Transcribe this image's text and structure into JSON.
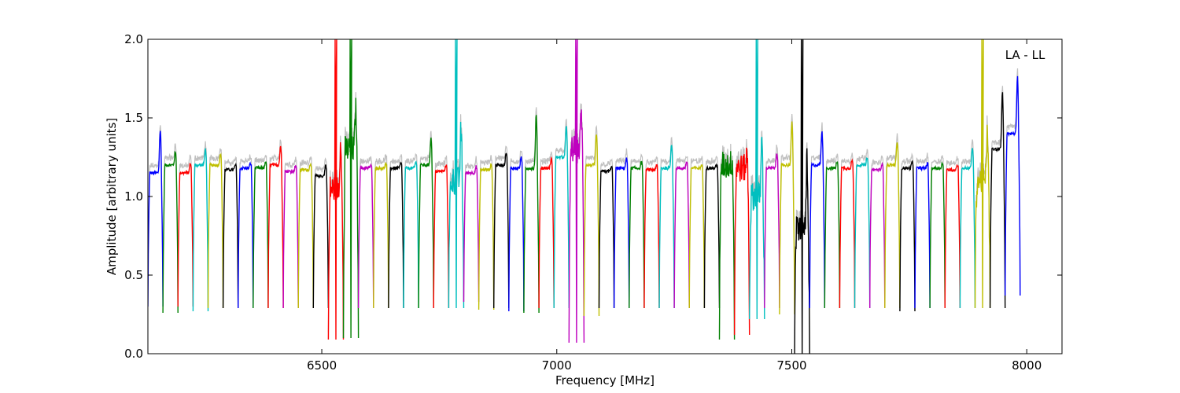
{
  "chart_data": {
    "type": "line",
    "xlabel": "Frequency [MHz]",
    "ylabel": "Amplitude [arbitrary units]",
    "annotation": "LA - LL",
    "xlim": [
      6130,
      8075
    ],
    "ylim": [
      0.0,
      2.0
    ],
    "xticks": [
      6500,
      7000,
      7500,
      8000
    ],
    "xtick_labels": [
      "6500",
      "7000",
      "7500",
      "8000"
    ],
    "yticks": [
      0.0,
      0.5,
      1.0,
      1.5,
      2.0
    ],
    "ytick_labels": [
      "0.0",
      "0.5",
      "1.0",
      "1.5",
      "2.0"
    ],
    "grid": false,
    "legend": "none",
    "background_series_color": "#c0c0c0",
    "series_colors": [
      "#0000ff",
      "#008000",
      "#ff0000",
      "#00bfbf",
      "#bfbf00",
      "#000000",
      "#bf00bf"
    ],
    "channel_width_mhz": 32,
    "channels": [
      {
        "start": 6130,
        "level": 1.15,
        "peak": 1.42,
        "min": 0.3,
        "color": "#0000ff"
      },
      {
        "start": 6162,
        "level": 1.2,
        "peak": 1.28,
        "min": 0.26,
        "color": "#008000"
      },
      {
        "start": 6194,
        "level": 1.15,
        "peak": 1.21,
        "min": 0.3,
        "color": "#ff0000"
      },
      {
        "start": 6226,
        "level": 1.2,
        "peak": 1.3,
        "min": 0.27,
        "color": "#00bfbf"
      },
      {
        "start": 6258,
        "level": 1.2,
        "peak": 1.27,
        "min": 0.29,
        "color": "#bfbf00"
      },
      {
        "start": 6290,
        "level": 1.17,
        "peak": 1.2,
        "min": 0.29,
        "color": "#000000"
      },
      {
        "start": 6322,
        "level": 1.18,
        "peak": 1.21,
        "min": 0.29,
        "color": "#0000ff"
      },
      {
        "start": 6354,
        "level": 1.18,
        "peak": 1.22,
        "min": 0.29,
        "color": "#008000"
      },
      {
        "start": 6386,
        "level": 1.2,
        "peak": 1.32,
        "min": 0.29,
        "color": "#ff0000"
      },
      {
        "start": 6418,
        "level": 1.16,
        "peak": 1.2,
        "min": 0.29,
        "color": "#bf00bf"
      },
      {
        "start": 6450,
        "level": 1.17,
        "peak": 1.21,
        "min": 0.29,
        "color": "#bfbf00"
      },
      {
        "start": 6482,
        "level": 1.13,
        "peak": 1.2,
        "min": 0.29,
        "color": "#000000"
      },
      {
        "start": 6514,
        "level": 1.05,
        "peak": 2.0,
        "min": 0.09,
        "color": "#ff0000"
      },
      {
        "start": 6546,
        "level": 1.3,
        "peak": 2.0,
        "min": 0.1,
        "color": "#008000"
      },
      {
        "start": 6578,
        "level": 1.18,
        "peak": 1.2,
        "min": 0.29,
        "color": "#bf00bf"
      },
      {
        "start": 6610,
        "level": 1.18,
        "peak": 1.21,
        "min": 0.29,
        "color": "#bfbf00"
      },
      {
        "start": 6642,
        "level": 1.18,
        "peak": 1.21,
        "min": 0.29,
        "color": "#000000"
      },
      {
        "start": 6674,
        "level": 1.18,
        "peak": 1.22,
        "min": 0.29,
        "color": "#00bfbf"
      },
      {
        "start": 6706,
        "level": 1.2,
        "peak": 1.37,
        "min": 0.29,
        "color": "#008000"
      },
      {
        "start": 6738,
        "level": 1.16,
        "peak": 1.2,
        "min": 0.29,
        "color": "#ff0000"
      },
      {
        "start": 6770,
        "level": 1.1,
        "peak": 2.0,
        "min": 0.29,
        "color": "#00bfbf"
      },
      {
        "start": 6802,
        "level": 1.15,
        "peak": 1.19,
        "min": 0.33,
        "color": "#bf00bf"
      },
      {
        "start": 6834,
        "level": 1.17,
        "peak": 1.2,
        "min": 0.28,
        "color": "#bfbf00"
      },
      {
        "start": 6866,
        "level": 1.2,
        "peak": 1.28,
        "min": 0.29,
        "color": "#000000"
      },
      {
        "start": 6898,
        "level": 1.18,
        "peak": 1.25,
        "min": 0.27,
        "color": "#0000ff"
      },
      {
        "start": 6930,
        "level": 1.18,
        "peak": 1.52,
        "min": 0.26,
        "color": "#008000"
      },
      {
        "start": 6962,
        "level": 1.18,
        "peak": 1.24,
        "min": 0.29,
        "color": "#ff0000"
      },
      {
        "start": 6994,
        "level": 1.25,
        "peak": 1.45,
        "min": 0.29,
        "color": "#00bfbf"
      },
      {
        "start": 7026,
        "level": 1.3,
        "peak": 2.0,
        "min": 0.07,
        "color": "#bf00bf"
      },
      {
        "start": 7058,
        "level": 1.2,
        "peak": 1.39,
        "min": 0.24,
        "color": "#bfbf00"
      },
      {
        "start": 7090,
        "level": 1.16,
        "peak": 1.19,
        "min": 0.29,
        "color": "#000000"
      },
      {
        "start": 7122,
        "level": 1.18,
        "peak": 1.24,
        "min": 0.29,
        "color": "#0000ff"
      },
      {
        "start": 7154,
        "level": 1.18,
        "peak": 1.22,
        "min": 0.29,
        "color": "#008000"
      },
      {
        "start": 7186,
        "level": 1.17,
        "peak": 1.2,
        "min": 0.29,
        "color": "#ff0000"
      },
      {
        "start": 7218,
        "level": 1.18,
        "peak": 1.33,
        "min": 0.29,
        "color": "#00bfbf"
      },
      {
        "start": 7250,
        "level": 1.18,
        "peak": 1.22,
        "min": 0.29,
        "color": "#bf00bf"
      },
      {
        "start": 7282,
        "level": 1.18,
        "peak": 1.2,
        "min": 0.29,
        "color": "#bfbf00"
      },
      {
        "start": 7314,
        "level": 1.18,
        "peak": 1.2,
        "min": 0.29,
        "color": "#000000"
      },
      {
        "start": 7346,
        "level": 1.2,
        "peak": 1.22,
        "min": 0.09,
        "color": "#008000"
      },
      {
        "start": 7378,
        "level": 1.18,
        "peak": 1.25,
        "min": 0.12,
        "color": "#ff0000"
      },
      {
        "start": 7410,
        "level": 1.0,
        "peak": 2.0,
        "min": 0.22,
        "color": "#00bfbf"
      },
      {
        "start": 7442,
        "level": 1.18,
        "peak": 1.27,
        "min": 0.29,
        "color": "#bf00bf"
      },
      {
        "start": 7474,
        "level": 1.2,
        "peak": 1.47,
        "min": 0.25,
        "color": "#bfbf00"
      },
      {
        "start": 7506,
        "level": 0.8,
        "peak": 2.0,
        "min": 0.0,
        "color": "#000000"
      },
      {
        "start": 7538,
        "level": 1.2,
        "peak": 1.41,
        "min": 0.29,
        "color": "#0000ff"
      },
      {
        "start": 7570,
        "level": 1.18,
        "peak": 1.22,
        "min": 0.29,
        "color": "#008000"
      },
      {
        "start": 7602,
        "level": 1.18,
        "peak": 1.23,
        "min": 0.29,
        "color": "#ff0000"
      },
      {
        "start": 7634,
        "level": 1.2,
        "peak": 1.24,
        "min": 0.29,
        "color": "#00bfbf"
      },
      {
        "start": 7666,
        "level": 1.17,
        "peak": 1.2,
        "min": 0.29,
        "color": "#bf00bf"
      },
      {
        "start": 7698,
        "level": 1.2,
        "peak": 1.35,
        "min": 0.29,
        "color": "#bfbf00"
      },
      {
        "start": 7730,
        "level": 1.18,
        "peak": 1.22,
        "min": 0.27,
        "color": "#000000"
      },
      {
        "start": 7762,
        "level": 1.18,
        "peak": 1.21,
        "min": 0.29,
        "color": "#0000ff"
      },
      {
        "start": 7794,
        "level": 1.18,
        "peak": 1.21,
        "min": 0.29,
        "color": "#008000"
      },
      {
        "start": 7826,
        "level": 1.17,
        "peak": 1.2,
        "min": 0.29,
        "color": "#ff0000"
      },
      {
        "start": 7858,
        "level": 1.18,
        "peak": 1.31,
        "min": 0.29,
        "color": "#00bfbf"
      },
      {
        "start": 7890,
        "level": 1.1,
        "peak": 2.0,
        "min": 0.29,
        "color": "#bfbf00"
      },
      {
        "start": 7922,
        "level": 1.3,
        "peak": 1.66,
        "min": 0.29,
        "color": "#000000"
      },
      {
        "start": 7954,
        "level": 1.4,
        "peak": 1.76,
        "min": 0.37,
        "color": "#0000ff"
      }
    ]
  }
}
